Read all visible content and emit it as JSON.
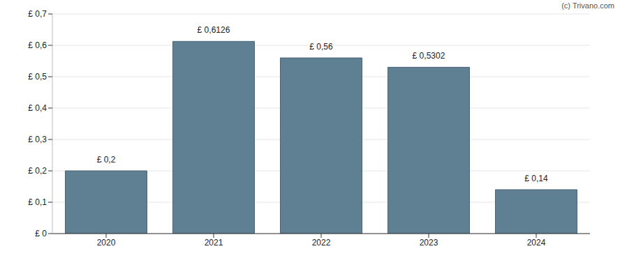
{
  "chart_data": {
    "type": "bar",
    "categories": [
      "2020",
      "2021",
      "2022",
      "2023",
      "2024"
    ],
    "values": [
      0.2,
      0.6126,
      0.56,
      0.5302,
      0.14
    ],
    "value_labels": [
      "£ 0,2",
      "£ 0,6126",
      "£ 0,56",
      "£ 0,5302",
      "£ 0,14"
    ],
    "data_labels": true,
    "color": "#5f7f93",
    "ylim": [
      0,
      0.7
    ],
    "yticks": [
      {
        "value": 0,
        "label": "£ 0"
      },
      {
        "value": 0.1,
        "label": "£ 0,1"
      },
      {
        "value": 0.2,
        "label": "£ 0,2"
      },
      {
        "value": 0.3,
        "label": "£ 0,3"
      },
      {
        "value": 0.4,
        "label": "£ 0,4"
      },
      {
        "value": 0.5,
        "label": "£ 0,5"
      },
      {
        "value": 0.6,
        "label": "£ 0,6"
      },
      {
        "value": 0.7,
        "label": "£ 0,7"
      }
    ],
    "grid": true,
    "annotations": [
      "(c) Trivano.com"
    ]
  }
}
